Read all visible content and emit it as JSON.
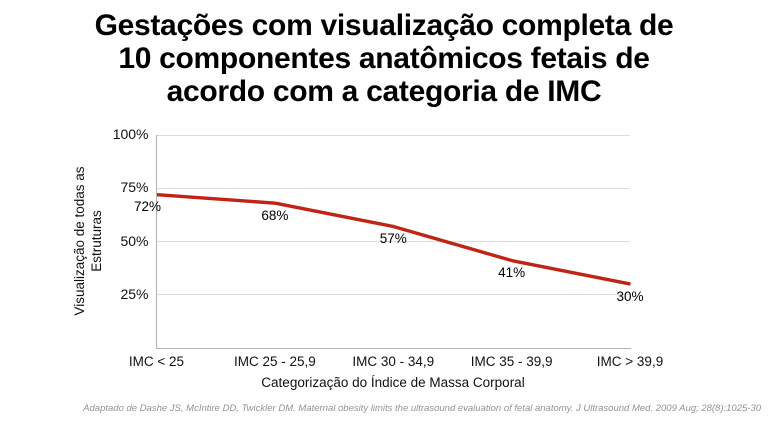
{
  "slide": {
    "title_lines": [
      "Gestações com visualização completa de",
      "10 componentes anatômicos fetais de",
      "acordo com a categoria de IMC"
    ],
    "footer": "Adaptado de Dashe JS, McIntire DD, Twickler DM. Maternal obesity limits the ultrasound evaluation of fetal anatomy. J Ultrasound Med. 2009 Aug; 28(8):1025-30"
  },
  "chart_data": {
    "type": "line",
    "title": "Gestações com visualização completa de 10 componentes anatômicos fetais de acordo com a categoria de IMC",
    "categories": [
      "IMC < 25",
      "IMC 25 - 25,9",
      "IMC 30 - 34,9",
      "IMC 35 - 39,9",
      "IMC > 39,9"
    ],
    "values": [
      72,
      68,
      57,
      41,
      30
    ],
    "data_labels": [
      "72%",
      "68%",
      "57%",
      "41%",
      "30%"
    ],
    "xlabel": "Categorização do Índice de Massa Corporal",
    "ylabel": "Visualização de todas as Estruturas",
    "ylabel_lines": [
      "Visualização de todas as",
      "Estruturas"
    ],
    "ylim": [
      0,
      100
    ],
    "y_ticks": [
      {
        "value": 100,
        "label": "100%"
      },
      {
        "value": 75,
        "label": "75%"
      },
      {
        "value": 50,
        "label": "50%"
      },
      {
        "value": 25,
        "label": "25%"
      }
    ],
    "grid": "horizontal",
    "legend": "none",
    "line_color": "#c02415",
    "axis_color": "#b0b0b0",
    "gridline_color": "#dcdcdc"
  }
}
